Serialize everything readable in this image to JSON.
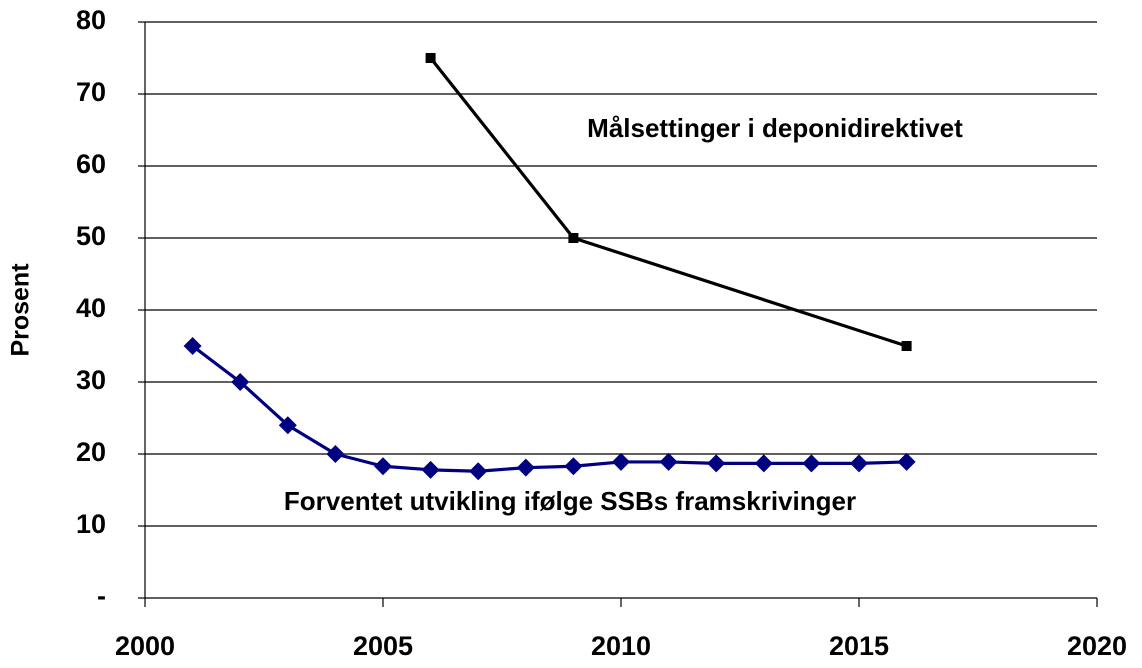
{
  "chart_data": {
    "type": "line",
    "y_label": "Prosent",
    "xlim": [
      2000,
      2020
    ],
    "xticks": [
      2000,
      2005,
      2010,
      2015,
      2020
    ],
    "ylim": [
      0,
      80
    ],
    "yticks": [
      {
        "value": 0,
        "label": "-"
      },
      10,
      20,
      30,
      40,
      50,
      60,
      70,
      80
    ],
    "grid": true,
    "series": [
      {
        "name": "Målsettinger i deponidirektivet",
        "color": "#000000",
        "marker": "square",
        "x": [
          2006,
          2009,
          2016
        ],
        "values": [
          75,
          50,
          35
        ]
      },
      {
        "name": "Forventet utvikling ifølge SSBs framskrivinger",
        "color": "#000080",
        "marker": "diamond",
        "x": [
          2001,
          2002,
          2003,
          2004,
          2005,
          2006,
          2007,
          2008,
          2009,
          2010,
          2011,
          2012,
          2013,
          2014,
          2015,
          2016
        ],
        "values": [
          35,
          30,
          24,
          20,
          18.3,
          17.8,
          17.6,
          18.1,
          18.3,
          18.9,
          18.9,
          18.7,
          18.7,
          18.7,
          18.7,
          18.9
        ]
      }
    ]
  }
}
